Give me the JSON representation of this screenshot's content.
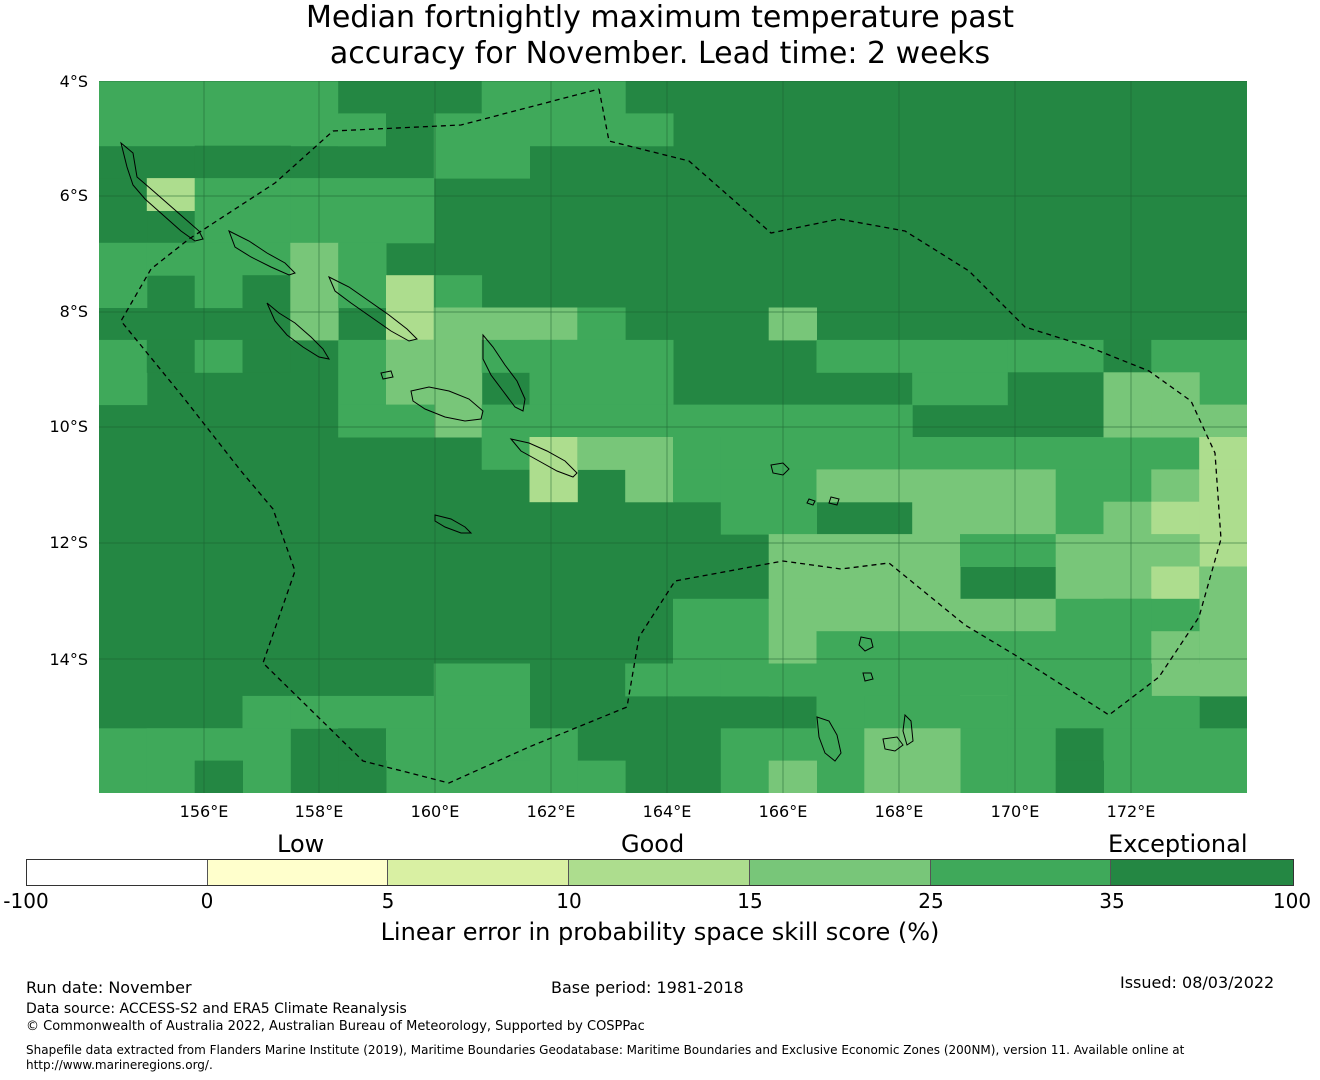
{
  "title": {
    "line1": "Median fortnightly maximum temperature past",
    "line2": "accuracy for November. Lead time: 2 weeks"
  },
  "map": {
    "lat_labels": [
      "4°S",
      "6°S",
      "8°S",
      "10°S",
      "12°S",
      "14°S"
    ],
    "lon_labels": [
      "156°E",
      "158°E",
      "160°E",
      "162°E",
      "164°E",
      "166°E",
      "168°E",
      "170°E",
      "172°E"
    ],
    "colors": {
      "exceptional": "#248743",
      "c25_35": "#3fa95a",
      "c15_25": "#78c679",
      "c10_15": "#addd8e",
      "c5_10": "#d9f0a3",
      "c0_5": "#ffffcc",
      "neg": "#ffffff"
    }
  },
  "legend": {
    "category_labels": [
      "Low",
      "Good",
      "Exceptional"
    ],
    "ticks": [
      "-100",
      "0",
      "5",
      "10",
      "15",
      "25",
      "35",
      "100"
    ],
    "colors": [
      "#ffffff",
      "#ffffcc",
      "#d9f0a3",
      "#addd8e",
      "#78c679",
      "#3fa95a",
      "#248743"
    ],
    "title": "Linear error in probability space skill score (%)"
  },
  "footer": {
    "run_date": "Run date: November",
    "base_period": "Base period: 1981-2018",
    "issued": "Issued: 08/03/2022",
    "data_source": "Data source: ACCESS-S2 and ERA5 Climate Reanalysis",
    "copyright": "© Commonwealth of Australia 2022, Australian Bureau of Meteorology, Supported by COSPPac",
    "shapefile": "Shapefile data extracted from Flanders Marine Institute (2019), Maritime Boundaries Geodatabase: Maritime Boundaries and Exclusive Economic Zones (200NM), version 11. Available online at http://www.marineregions.org/."
  }
}
